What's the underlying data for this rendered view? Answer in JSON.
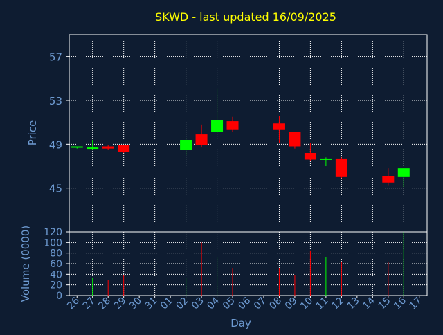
{
  "chart_data": [
    {
      "type": "candlestick",
      "title": "SKWD - last updated 16/09/2025",
      "ylabel": "Price",
      "xlabel": "Day",
      "ylim": [
        41,
        59
      ],
      "yticks": [
        45,
        49,
        53,
        57
      ],
      "grid": true,
      "x_tick_labels": [
        "26",
        "27",
        "28",
        "29",
        "30",
        "31",
        "01",
        "02",
        "03",
        "04",
        "05",
        "06",
        "07",
        "08",
        "09",
        "10",
        "11",
        "12",
        "13",
        "14",
        "15",
        "16",
        "17"
      ],
      "candles": [
        {
          "day": "26",
          "open": 48.7,
          "high": 48.8,
          "low": 48.6,
          "close": 48.8
        },
        {
          "day": "27",
          "open": 48.6,
          "high": 49.4,
          "low": 48.5,
          "close": 48.7
        },
        {
          "day": "28",
          "open": 48.8,
          "high": 48.9,
          "low": 48.5,
          "close": 48.6
        },
        {
          "day": "29",
          "open": 48.9,
          "high": 48.9,
          "low": 48.2,
          "close": 48.3
        },
        {
          "day": "02",
          "open": 48.5,
          "high": 49.5,
          "low": 48.0,
          "close": 49.4
        },
        {
          "day": "03",
          "open": 49.9,
          "high": 50.8,
          "low": 48.7,
          "close": 48.9
        },
        {
          "day": "04",
          "open": 50.1,
          "high": 54.1,
          "low": 50.1,
          "close": 51.2
        },
        {
          "day": "05",
          "open": 51.1,
          "high": 51.5,
          "low": 50.1,
          "close": 50.3
        },
        {
          "day": "08",
          "open": 50.9,
          "high": 51.6,
          "low": 49.1,
          "close": 50.3
        },
        {
          "day": "09",
          "open": 50.1,
          "high": 50.1,
          "low": 48.6,
          "close": 48.8
        },
        {
          "day": "10",
          "open": 48.2,
          "high": 49.1,
          "low": 47.5,
          "close": 47.6
        },
        {
          "day": "11",
          "open": 47.6,
          "high": 47.8,
          "low": 47.0,
          "close": 47.7
        },
        {
          "day": "12",
          "open": 47.7,
          "high": 47.8,
          "low": 45.9,
          "close": 46.0
        },
        {
          "day": "15",
          "open": 46.1,
          "high": 46.8,
          "low": 45.2,
          "close": 45.5
        },
        {
          "day": "16",
          "open": 46.0,
          "high": 46.8,
          "low": 45.1,
          "close": 46.8
        }
      ],
      "colors": {
        "up": "#00ff00",
        "down": "#ff0000",
        "text": "#6e9bd2",
        "title": "#ffff00",
        "grid": "#ffffff",
        "axis": "#ffffff"
      }
    },
    {
      "type": "bar",
      "ylabel": "Volume (0000)",
      "ylim": [
        0,
        120
      ],
      "yticks": [
        0,
        20,
        40,
        60,
        80,
        100,
        120
      ],
      "volumes": [
        {
          "day": "26",
          "value": 0,
          "color": "#00ff00"
        },
        {
          "day": "27",
          "value": 34,
          "color": "#00ff00"
        },
        {
          "day": "28",
          "value": 30,
          "color": "#ff0000"
        },
        {
          "day": "29",
          "value": 38,
          "color": "#ff0000"
        },
        {
          "day": "02",
          "value": 34,
          "color": "#00ff00"
        },
        {
          "day": "03",
          "value": 100,
          "color": "#ff0000"
        },
        {
          "day": "04",
          "value": 73,
          "color": "#00ff00"
        },
        {
          "day": "05",
          "value": 52,
          "color": "#ff0000"
        },
        {
          "day": "08",
          "value": 52,
          "color": "#ff0000"
        },
        {
          "day": "09",
          "value": 38,
          "color": "#ff0000"
        },
        {
          "day": "10",
          "value": 85,
          "color": "#ff0000"
        },
        {
          "day": "11",
          "value": 73,
          "color": "#00ff00"
        },
        {
          "day": "12",
          "value": 64,
          "color": "#ff0000"
        },
        {
          "day": "15",
          "value": 64,
          "color": "#ff0000"
        },
        {
          "day": "16",
          "value": 120,
          "color": "#00ff00"
        }
      ]
    }
  ]
}
